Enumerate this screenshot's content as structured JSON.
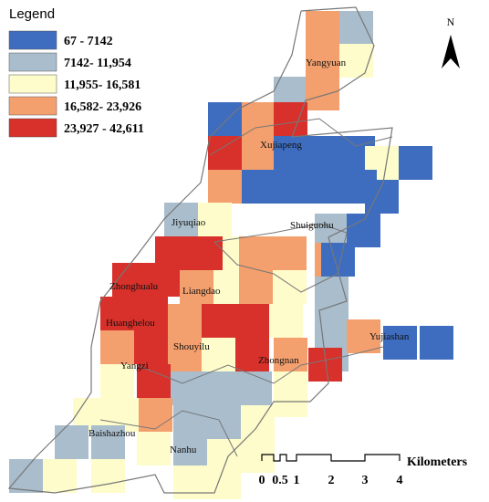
{
  "legend": {
    "title": "Legend",
    "items": [
      {
        "label": "67 - 7142",
        "color": "#3e6dbf"
      },
      {
        "label": "7142- 11,954",
        "color": "#a9bdcc"
      },
      {
        "label": "11,955- 16,581",
        "color": "#fdfcca"
      },
      {
        "label": "16,582- 23,926",
        "color": "#f4a06e"
      },
      {
        "label": "23,927 - 42,611",
        "color": "#d8302a"
      }
    ]
  },
  "places": [
    "Yangyuan",
    "Xujiapeng",
    "Jiyuqiao",
    "Shuiguohu",
    "Zhonghualu",
    "Liangdao",
    "Huanghelou",
    "Shouyilu",
    "Yujiashan",
    "Zhongnan",
    "Yangzi",
    "Baishazhou",
    "Nanhu"
  ],
  "north": "N",
  "scale_bar": {
    "ticks": [
      "0",
      "0.5",
      "1",
      "2",
      "3",
      "4"
    ],
    "unit": "Kilometers"
  }
}
